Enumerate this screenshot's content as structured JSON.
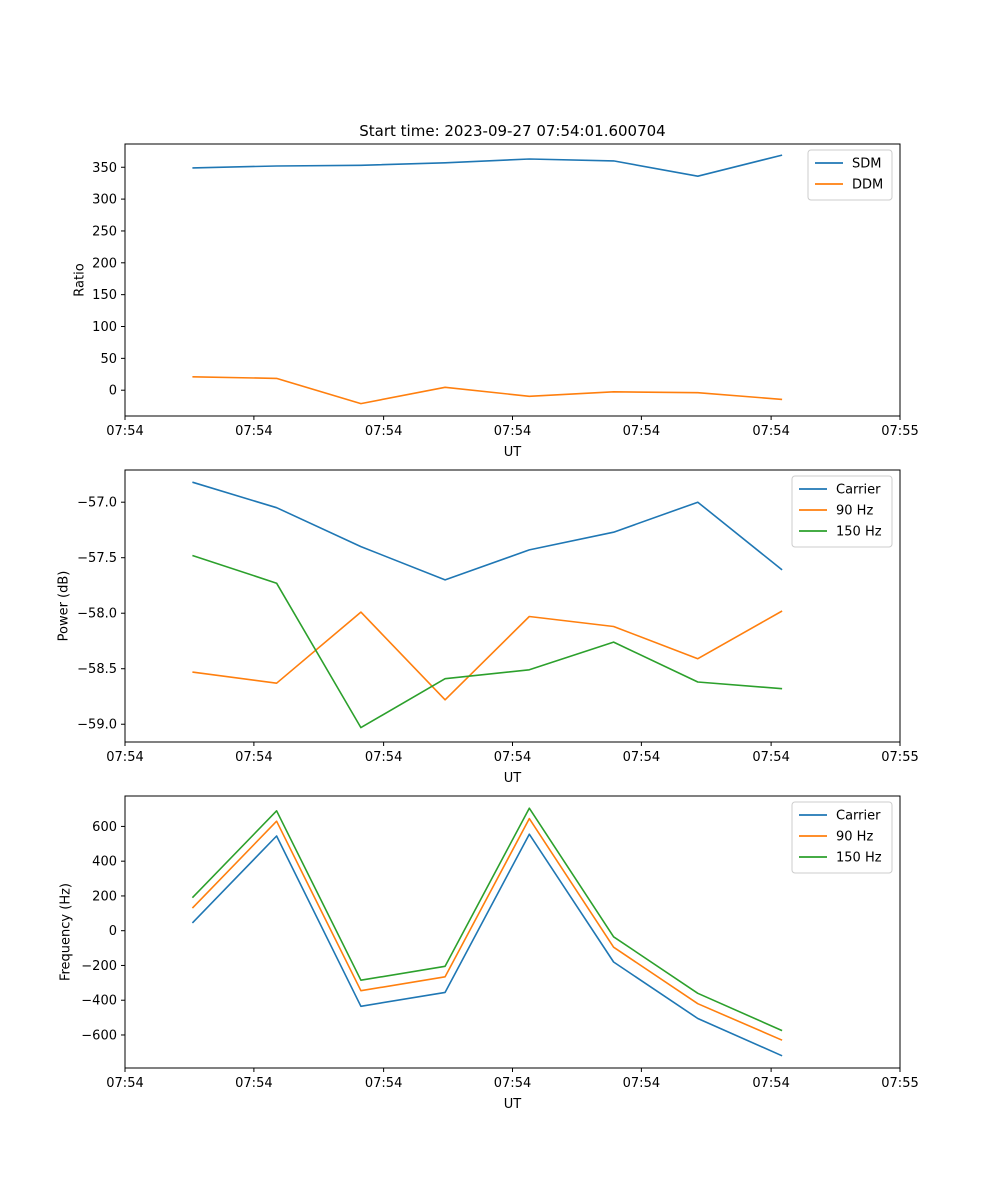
{
  "figure_title": "Start time: 2023-09-27 07:54:01.600704",
  "colors": {
    "blue": "#1f77b4",
    "orange": "#ff7f0e",
    "green": "#2ca02c"
  },
  "chart_data": [
    {
      "type": "line",
      "title": "Start time: 2023-09-27 07:54:01.600704",
      "xlabel": "UT",
      "ylabel": "Ratio",
      "x": [
        1,
        2,
        3,
        4,
        5,
        6,
        7,
        8
      ],
      "xlim": [
        0.2,
        9.4
      ],
      "x_ticks": [
        0.2,
        1.73,
        3.27,
        4.8,
        6.33,
        7.87,
        9.4
      ],
      "x_tick_labels": [
        "07:54",
        "07:54",
        "07:54",
        "07:54",
        "07:54",
        "07:54",
        "07:55"
      ],
      "ylim": [
        -40.5,
        386.5
      ],
      "y_ticks": [
        0,
        50,
        100,
        150,
        200,
        250,
        300,
        350
      ],
      "y_tick_labels": [
        "0",
        "50",
        "100",
        "150",
        "200",
        "250",
        "300",
        "350"
      ],
      "legend_position": "top-right",
      "series": [
        {
          "name": "SDM",
          "color": "#1f77b4",
          "values": [
            349,
            352,
            353,
            357,
            363,
            360,
            336,
            369
          ]
        },
        {
          "name": "DDM",
          "color": "#ff7f0e",
          "values": [
            21,
            18.5,
            -21,
            4.5,
            -9.5,
            -2.5,
            -4,
            -14.5
          ]
        }
      ]
    },
    {
      "type": "line",
      "title": "",
      "xlabel": "UT",
      "ylabel": "Power (dB)",
      "x": [
        1,
        2,
        3,
        4,
        5,
        6,
        7,
        8
      ],
      "xlim": [
        0.2,
        9.4
      ],
      "x_ticks": [
        0.2,
        1.73,
        3.27,
        4.8,
        6.33,
        7.87,
        9.4
      ],
      "x_tick_labels": [
        "07:54",
        "07:54",
        "07:54",
        "07:54",
        "07:54",
        "07:54",
        "07:55"
      ],
      "ylim": [
        -59.16,
        -56.71
      ],
      "y_ticks": [
        -59.0,
        -58.5,
        -58.0,
        -57.5,
        -57.0
      ],
      "y_tick_labels": [
        "−59.0",
        "−58.5",
        "−58.0",
        "−57.5",
        "−57.0"
      ],
      "legend_position": "top-right",
      "series": [
        {
          "name": "Carrier",
          "color": "#1f77b4",
          "values": [
            -56.82,
            -57.05,
            -57.4,
            -57.7,
            -57.43,
            -57.27,
            -57.0,
            -57.61
          ]
        },
        {
          "name": "90 Hz",
          "color": "#ff7f0e",
          "values": [
            -58.53,
            -58.63,
            -57.99,
            -58.78,
            -58.03,
            -58.12,
            -58.41,
            -57.98
          ]
        },
        {
          "name": "150 Hz",
          "color": "#2ca02c",
          "values": [
            -57.48,
            -57.73,
            -59.03,
            -58.59,
            -58.51,
            -58.26,
            -58.62,
            -58.68
          ]
        }
      ]
    },
    {
      "type": "line",
      "title": "",
      "xlabel": "UT",
      "ylabel": "Frequency (Hz)",
      "x": [
        1,
        2,
        3,
        4,
        5,
        6,
        7,
        8
      ],
      "xlim": [
        0.2,
        9.4
      ],
      "x_ticks": [
        0.2,
        1.73,
        3.27,
        4.8,
        6.33,
        7.87,
        9.4
      ],
      "x_tick_labels": [
        "07:54",
        "07:54",
        "07:54",
        "07:54",
        "07:54",
        "07:54",
        "07:55"
      ],
      "ylim": [
        -790,
        775
      ],
      "y_ticks": [
        -600,
        -400,
        -200,
        0,
        200,
        400,
        600
      ],
      "y_tick_labels": [
        "−600",
        "−400",
        "−200",
        "0",
        "200",
        "400",
        "600"
      ],
      "legend_position": "top-right",
      "series": [
        {
          "name": "Carrier",
          "color": "#1f77b4",
          "values": [
            45,
            545,
            -435,
            -355,
            555,
            -180,
            -505,
            -720
          ]
        },
        {
          "name": "90 Hz",
          "color": "#ff7f0e",
          "values": [
            130,
            630,
            -345,
            -265,
            645,
            -95,
            -420,
            -630
          ]
        },
        {
          "name": "150 Hz",
          "color": "#2ca02c",
          "values": [
            190,
            690,
            -285,
            -205,
            705,
            -35,
            -360,
            -575
          ]
        }
      ]
    }
  ]
}
